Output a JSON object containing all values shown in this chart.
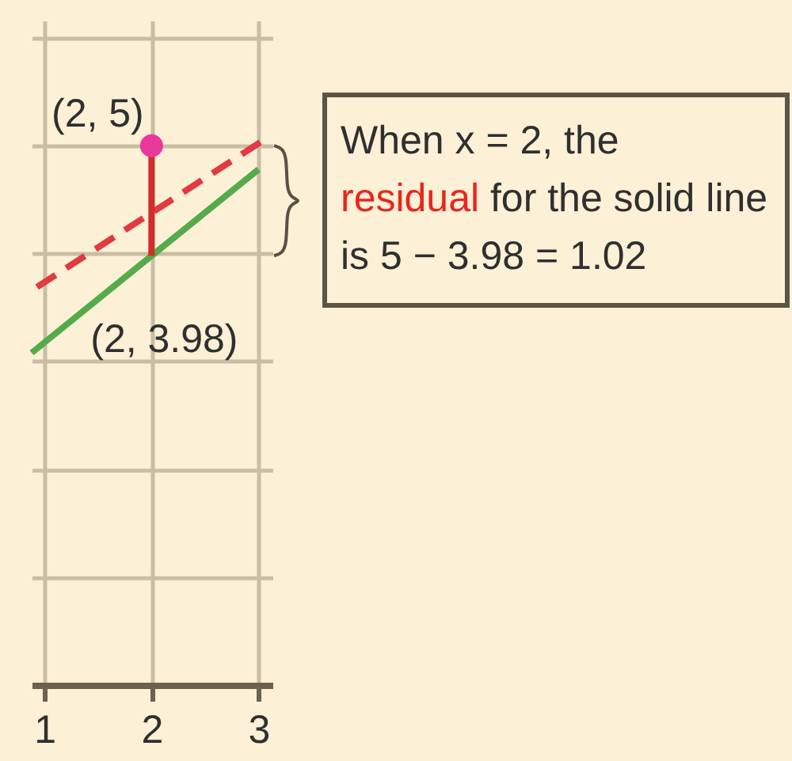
{
  "chart_data": {
    "type": "line",
    "xlim": [
      0.88,
      3.13
    ],
    "xticks": [
      1,
      2,
      3
    ],
    "ylim": [
      0,
      6.16
    ],
    "yticks": [
      0,
      1,
      2,
      3,
      4,
      5,
      6
    ],
    "tick_labels": "x",
    "grid": true,
    "series": [
      {
        "color": "#55ab4b",
        "line_style": "solid",
        "x": [
          0.88,
          2,
          3
        ],
        "values": [
          3.08,
          3.98,
          4.78
        ],
        "value_labels": [
          null,
          "(2, 3.98)",
          null
        ]
      },
      {
        "color": "#e23a3f",
        "line_style": "dashed",
        "x": [
          0.93,
          3.03
        ],
        "values": [
          3.69,
          5.04
        ]
      },
      {
        "color": "#d22c2c",
        "line_style": "solid",
        "x": [
          2,
          2
        ],
        "values": [
          3.98,
          5
        ]
      },
      {
        "type": "scatter",
        "color": "#e8399b",
        "marker": "circle",
        "x": [
          2
        ],
        "values": [
          5
        ],
        "value_labels": [
          "(2, 5)"
        ]
      }
    ],
    "annotations": [
      "When x = 2, the",
      "residual for the solid line",
      "is 5 − 3.98 = 1.02"
    ]
  }
}
